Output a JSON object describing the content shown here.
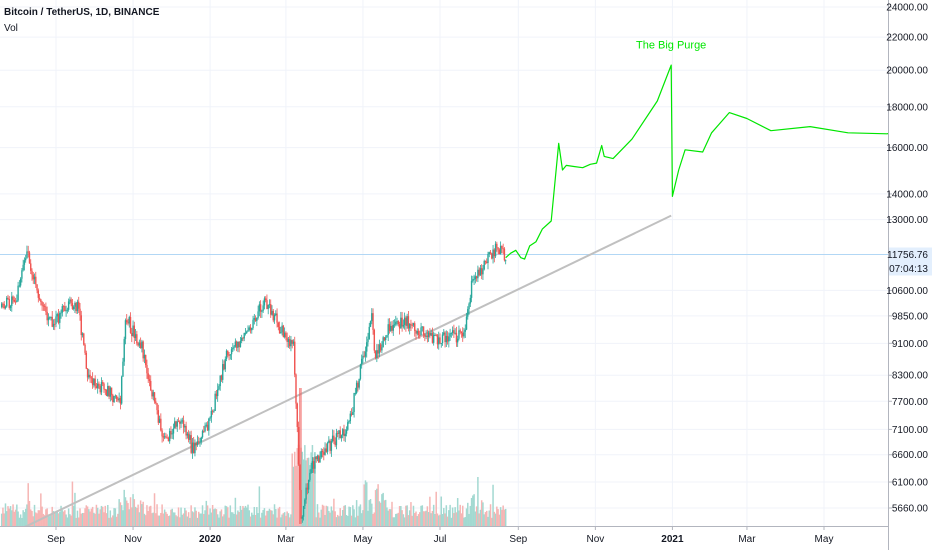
{
  "header": {
    "symbol": "Bitcoin / TetherUS, 1D, BINANCE",
    "vol_label": "Vol"
  },
  "price_axis": {
    "ticks": [
      24000,
      22000,
      20000,
      18000,
      16000,
      14000,
      13000,
      10600,
      9850,
      9100,
      8300,
      7700,
      7100,
      6600,
      6100,
      5660
    ],
    "tick_labels": [
      "24000.00",
      "22000.00",
      "20000.00",
      "18000.00",
      "16000.00",
      "14000.00",
      "13000.00",
      "10600.00",
      "9850.00",
      "9100.00",
      "8300.00",
      "7700.00",
      "7100.00",
      "6600.00",
      "6100.00",
      "5660.00"
    ],
    "scale": "log",
    "range": [
      5450,
      24300
    ]
  },
  "badges": {
    "last_price": "11756.76",
    "countdown": "07:04:13"
  },
  "time_axis": {
    "labels": [
      {
        "text": "Sep",
        "date": "2019-09-01",
        "bold": false
      },
      {
        "text": "Nov",
        "date": "2019-11-01",
        "bold": false
      },
      {
        "text": "2020",
        "date": "2020-01-01",
        "bold": true
      },
      {
        "text": "Mar",
        "date": "2020-03-01",
        "bold": false
      },
      {
        "text": "May",
        "date": "2020-05-01",
        "bold": false
      },
      {
        "text": "Jul",
        "date": "2020-07-01",
        "bold": false
      },
      {
        "text": "Sep",
        "date": "2020-09-01",
        "bold": false
      },
      {
        "text": "Nov",
        "date": "2020-11-01",
        "bold": false
      },
      {
        "text": "2021",
        "date": "2021-01-01",
        "bold": true
      },
      {
        "text": "Mar",
        "date": "2021-03-01",
        "bold": false
      },
      {
        "text": "May",
        "date": "2021-05-01",
        "bold": false
      }
    ]
  },
  "annotation": {
    "text": "The Big Purge",
    "date": "2020-12-31",
    "price": 21300
  },
  "colors": {
    "up": "#26a69a",
    "down": "#ef5350",
    "projection": "#00e600",
    "trendline": "#c0c0c0",
    "price_line": "#b2d7f5"
  },
  "chart_data": {
    "type": "candlestick",
    "symbol": "BTCUSDT",
    "interval": "1D",
    "exchange": "BINANCE",
    "last_price": 11756.76,
    "price_anchors": [
      [
        "2019-07-20",
        10100
      ],
      [
        "2019-08-01",
        10400
      ],
      [
        "2019-08-06",
        11500
      ],
      [
        "2019-08-10",
        11800
      ],
      [
        "2019-08-18",
        10300
      ],
      [
        "2019-08-29",
        9600
      ],
      [
        "2019-09-10",
        10200
      ],
      [
        "2019-09-19",
        10100
      ],
      [
        "2019-09-26",
        8200
      ],
      [
        "2019-10-05",
        8100
      ],
      [
        "2019-10-22",
        7700
      ],
      [
        "2019-10-26",
        9800
      ],
      [
        "2019-11-08",
        9000
      ],
      [
        "2019-11-22",
        7200
      ],
      [
        "2019-11-25",
        6900
      ],
      [
        "2019-12-10",
        7300
      ],
      [
        "2019-12-18",
        6700
      ],
      [
        "2019-12-31",
        7200
      ],
      [
        "2020-01-14",
        8800
      ],
      [
        "2020-02-01",
        9400
      ],
      [
        "2020-02-13",
        10300
      ],
      [
        "2020-02-24",
        9600
      ],
      [
        "2020-03-07",
        9000
      ],
      [
        "2020-03-12",
        6000
      ],
      [
        "2020-03-13",
        5400
      ],
      [
        "2020-03-20",
        6300
      ],
      [
        "2020-04-05",
        6800
      ],
      [
        "2020-04-20",
        7200
      ],
      [
        "2020-04-30",
        8600
      ],
      [
        "2020-05-08",
        9800
      ],
      [
        "2020-05-11",
        8700
      ],
      [
        "2020-05-20",
        9500
      ],
      [
        "2020-06-01",
        9700
      ],
      [
        "2020-06-15",
        9400
      ],
      [
        "2020-07-01",
        9200
      ],
      [
        "2020-07-12",
        9250
      ],
      [
        "2020-07-21",
        9400
      ],
      [
        "2020-07-27",
        11000
      ],
      [
        "2020-08-02",
        11100
      ],
      [
        "2020-08-10",
        11800
      ],
      [
        "2020-08-17",
        12000
      ],
      [
        "2020-08-22",
        11700
      ]
    ],
    "candle_range": [
      "2019-07-20",
      "2020-08-22"
    ],
    "projection": [
      [
        "2020-08-22",
        11650
      ],
      [
        "2020-08-26",
        11800
      ],
      [
        "2020-08-30",
        11900
      ],
      [
        "2020-09-03",
        11650
      ],
      [
        "2020-09-06",
        11600
      ],
      [
        "2020-09-10",
        12050
      ],
      [
        "2020-09-15",
        12200
      ],
      [
        "2020-09-20",
        12650
      ],
      [
        "2020-09-27",
        12950
      ],
      [
        "2020-10-03",
        16200
      ],
      [
        "2020-10-06",
        15000
      ],
      [
        "2020-10-09",
        15200
      ],
      [
        "2020-10-15",
        15150
      ],
      [
        "2020-10-22",
        15100
      ],
      [
        "2020-10-28",
        15250
      ],
      [
        "2020-11-02",
        15300
      ],
      [
        "2020-11-04",
        15700
      ],
      [
        "2020-11-06",
        16100
      ],
      [
        "2020-11-08",
        15600
      ],
      [
        "2020-11-15",
        15500
      ],
      [
        "2020-11-30",
        16400
      ],
      [
        "2020-12-20",
        18300
      ],
      [
        "2020-12-31",
        20300
      ],
      [
        "2021-01-01",
        13900
      ],
      [
        "2021-01-06",
        15000
      ],
      [
        "2021-01-11",
        15900
      ],
      [
        "2021-01-25",
        15800
      ],
      [
        "2021-02-01",
        16700
      ],
      [
        "2021-02-15",
        17700
      ],
      [
        "2021-03-01",
        17400
      ],
      [
        "2021-03-20",
        16800
      ],
      [
        "2021-04-20",
        17000
      ],
      [
        "2021-05-20",
        16700
      ],
      [
        "2021-06-20",
        16650
      ],
      [
        "2021-07-08",
        17000
      ]
    ],
    "trendline": [
      [
        "2019-08-01",
        5300
      ],
      [
        "2020-12-31",
        13150
      ]
    ],
    "volume": {
      "label": "Vol",
      "range": [
        "2019-07-20",
        "2020-08-22"
      ]
    }
  }
}
